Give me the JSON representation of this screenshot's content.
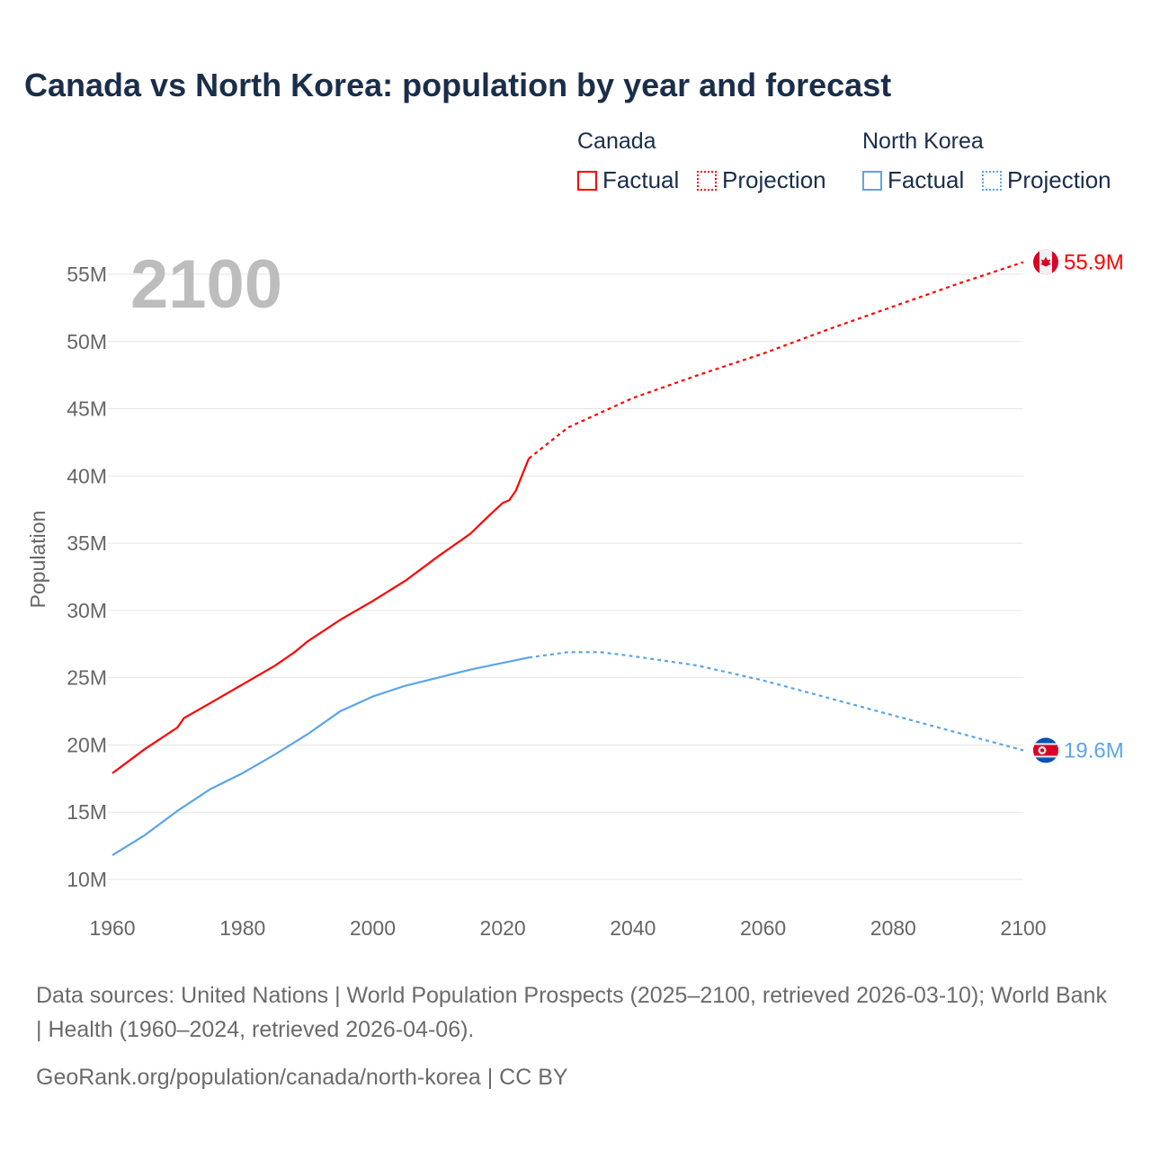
{
  "chart_data": {
    "type": "line",
    "title": "Canada vs North Korea: population by year and forecast",
    "ylabel": "Population",
    "xlabel": "",
    "xlim": [
      1960,
      2100
    ],
    "ylim": [
      10,
      55
    ],
    "y_unit": "M",
    "x_ticks": [
      "1960",
      "1980",
      "2000",
      "2020",
      "2040",
      "2060",
      "2080",
      "2100"
    ],
    "y_ticks": [
      "10M",
      "15M",
      "20M",
      "25M",
      "30M",
      "35M",
      "40M",
      "45M",
      "50M",
      "55M"
    ],
    "big_year_label": "2100",
    "grid": true,
    "legend_placement": "top-right",
    "legend": {
      "groups": [
        {
          "name": "Canada",
          "factual": "Factual",
          "projection": "Projection"
        },
        {
          "name": "North Korea",
          "factual": "Factual",
          "projection": "Projection"
        }
      ]
    },
    "series": [
      {
        "name": "Canada",
        "color": "#ff0000",
        "end_label": "55.9M",
        "factual": {
          "x": [
            1960,
            1965,
            1970,
            1971,
            1975,
            1980,
            1985,
            1988,
            1990,
            1995,
            2000,
            2005,
            2010,
            2015,
            2018,
            2020,
            2021,
            2022,
            2023,
            2024
          ],
          "y": [
            17.9,
            19.7,
            21.3,
            22.0,
            23.1,
            24.5,
            25.9,
            26.9,
            27.7,
            29.3,
            30.7,
            32.2,
            34.0,
            35.7,
            37.1,
            38.0,
            38.2,
            38.9,
            40.1,
            41.3
          ]
        },
        "projection": {
          "x": [
            2024,
            2030,
            2040,
            2050,
            2060,
            2070,
            2080,
            2090,
            2100
          ],
          "y": [
            41.3,
            43.6,
            45.8,
            47.5,
            49.1,
            50.9,
            52.6,
            54.3,
            55.9
          ]
        }
      },
      {
        "name": "North Korea",
        "color": "#5ba4ea",
        "end_label": "19.6M",
        "factual": {
          "x": [
            1960,
            1965,
            1970,
            1975,
            1980,
            1985,
            1990,
            1995,
            2000,
            2005,
            2010,
            2015,
            2020,
            2024
          ],
          "y": [
            11.8,
            13.3,
            15.1,
            16.7,
            17.9,
            19.3,
            20.8,
            22.5,
            23.6,
            24.4,
            25.0,
            25.6,
            26.1,
            26.5
          ]
        },
        "projection": {
          "x": [
            2024,
            2030,
            2035,
            2040,
            2050,
            2060,
            2070,
            2080,
            2090,
            2100
          ],
          "y": [
            26.5,
            26.9,
            26.9,
            26.6,
            25.9,
            24.8,
            23.5,
            22.2,
            20.9,
            19.6
          ]
        }
      }
    ]
  },
  "footer": {
    "sources": "Data sources: United Nations | World Population Prospects (2025–2100, retrieved 2026-03-10); World Bank | Health (1960–2024, retrieved 2026-04-06).",
    "credit": "GeoRank.org/population/canada/north-korea | CC BY"
  }
}
